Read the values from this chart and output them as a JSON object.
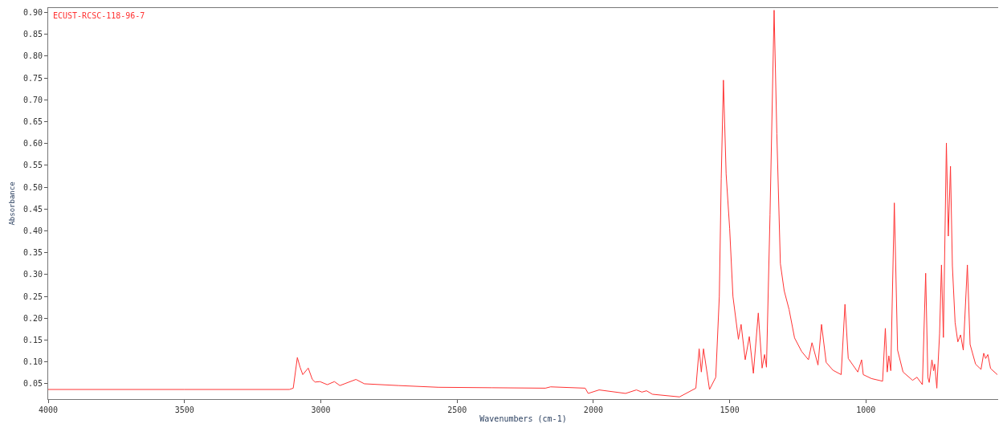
{
  "chart_data": {
    "type": "line",
    "xlabel": "Wavenumbers (cm-1)",
    "ylabel": "Absorbance",
    "annotations": [
      "ECUST-RCSC-118-96-7"
    ],
    "xlim": [
      4000,
      515
    ],
    "xticks": [
      4000,
      3500,
      3000,
      2500,
      2000,
      1500,
      1000
    ],
    "ylim": [
      0.015,
      0.91
    ],
    "yticks": [
      {
        "value": 0.05,
        "label": "0.05"
      },
      {
        "value": 0.1,
        "label": "0.10"
      },
      {
        "value": 0.15,
        "label": "0.15"
      },
      {
        "value": 0.2,
        "label": "0.20"
      },
      {
        "value": 0.25,
        "label": "0.25"
      },
      {
        "value": 0.3,
        "label": "0.30"
      },
      {
        "value": 0.35,
        "label": "0.35"
      },
      {
        "value": 0.4,
        "label": "0.40"
      },
      {
        "value": 0.45,
        "label": "0.45"
      },
      {
        "value": 0.5,
        "label": "0.50"
      },
      {
        "value": 0.55,
        "label": "0.55"
      },
      {
        "value": 0.6,
        "label": "0.60"
      },
      {
        "value": 0.65,
        "label": "0.65"
      },
      {
        "value": 0.7,
        "label": "0.70"
      },
      {
        "value": 0.75,
        "label": "0.75"
      },
      {
        "value": 0.8,
        "label": "0.80"
      },
      {
        "value": 0.85,
        "label": "0.85"
      },
      {
        "value": 0.9,
        "label": "0.90"
      }
    ],
    "marker": "none",
    "line_style": "solid",
    "series": [
      {
        "color": "#ff3333",
        "x": [
          4000,
          3500,
          3115,
          3101,
          3086,
          3076,
          3066,
          3046,
          3031,
          3021,
          3003,
          2976,
          2950,
          2930,
          2871,
          2840,
          2715,
          2568,
          2372,
          2176,
          2157,
          2030,
          2019,
          1979,
          1882,
          1842,
          1822,
          1805,
          1783,
          1684,
          1624,
          1612,
          1604,
          1596,
          1574,
          1551,
          1538,
          1531,
          1523,
          1513,
          1500,
          1488,
          1468,
          1458,
          1443,
          1428,
          1413,
          1395,
          1381,
          1372,
          1365,
          1352,
          1337,
          1327,
          1314,
          1300,
          1282,
          1262,
          1236,
          1211,
          1198,
          1176,
          1163,
          1146,
          1121,
          1091,
          1077,
          1065,
          1030,
          1016,
          1010,
          980,
          939,
          929,
          922,
          916,
          909,
          896,
          884,
          864,
          829,
          813,
          793,
          781,
          773,
          768,
          758,
          752,
          748,
          740,
          730,
          723,
          716,
          705,
          698,
          690,
          683,
          673,
          663,
          653,
          643,
          628,
          618,
          598,
          578,
          568,
          561,
          553,
          543,
          518
        ],
        "values": [
          0.037,
          0.037,
          0.037,
          0.04,
          0.11,
          0.088,
          0.071,
          0.086,
          0.06,
          0.054,
          0.055,
          0.048,
          0.055,
          0.046,
          0.06,
          0.05,
          0.046,
          0.042,
          0.041,
          0.04,
          0.043,
          0.04,
          0.028,
          0.036,
          0.028,
          0.036,
          0.031,
          0.034,
          0.026,
          0.02,
          0.04,
          0.13,
          0.077,
          0.13,
          0.037,
          0.065,
          0.25,
          0.52,
          0.745,
          0.53,
          0.405,
          0.25,
          0.152,
          0.186,
          0.105,
          0.158,
          0.074,
          0.212,
          0.086,
          0.117,
          0.088,
          0.437,
          0.905,
          0.622,
          0.325,
          0.263,
          0.22,
          0.155,
          0.124,
          0.105,
          0.144,
          0.093,
          0.186,
          0.099,
          0.081,
          0.071,
          0.232,
          0.108,
          0.077,
          0.105,
          0.071,
          0.062,
          0.056,
          0.177,
          0.077,
          0.114,
          0.08,
          0.464,
          0.127,
          0.077,
          0.058,
          0.065,
          0.048,
          0.303,
          0.065,
          0.053,
          0.105,
          0.08,
          0.095,
          0.04,
          0.164,
          0.322,
          0.156,
          0.601,
          0.388,
          0.548,
          0.32,
          0.19,
          0.146,
          0.162,
          0.127,
          0.322,
          0.14,
          0.095,
          0.083,
          0.12,
          0.108,
          0.117,
          0.085,
          0.071
        ]
      }
    ]
  }
}
